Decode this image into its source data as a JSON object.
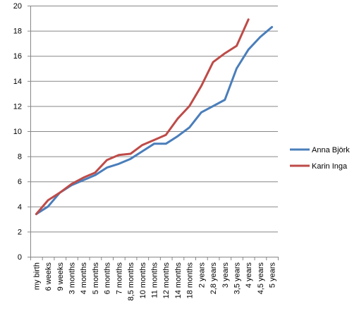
{
  "chart_data": {
    "type": "line",
    "title": "",
    "xlabel": "",
    "ylabel": "",
    "ylim": [
      0,
      20
    ],
    "y_ticks": [
      0,
      2,
      4,
      6,
      8,
      10,
      12,
      14,
      16,
      18,
      20
    ],
    "grid": "horizontal",
    "legend_position": "right",
    "categories": [
      "my birth",
      "6 weeks",
      "9 weeks",
      "3 months",
      "4 months",
      "5 months",
      "6 months",
      "7 months",
      "8,5 months",
      "10 months",
      "11 months",
      "12 months",
      "14 months",
      "18 months",
      "2 years",
      "2,8 years",
      "3 years",
      "3,5 years",
      "4 years",
      "4,5 years",
      "5 years"
    ],
    "series": [
      {
        "name": "Anna Björk",
        "color": "#4a7ebb",
        "values": [
          3.4,
          4.0,
          5.1,
          5.7,
          6.1,
          6.5,
          7.1,
          7.4,
          7.8,
          8.4,
          9.0,
          9.0,
          9.6,
          10.3,
          11.5,
          12.0,
          12.5,
          15.0,
          16.5,
          17.5,
          18.3
        ]
      },
      {
        "name": "Karin Inga",
        "color": "#be4b48",
        "values": [
          3.4,
          4.5,
          5.1,
          5.8,
          6.3,
          6.7,
          7.7,
          8.1,
          8.2,
          8.9,
          9.3,
          9.7,
          11.0,
          12.0,
          13.6,
          15.5,
          16.2,
          16.8,
          18.9,
          null,
          null
        ]
      }
    ]
  }
}
